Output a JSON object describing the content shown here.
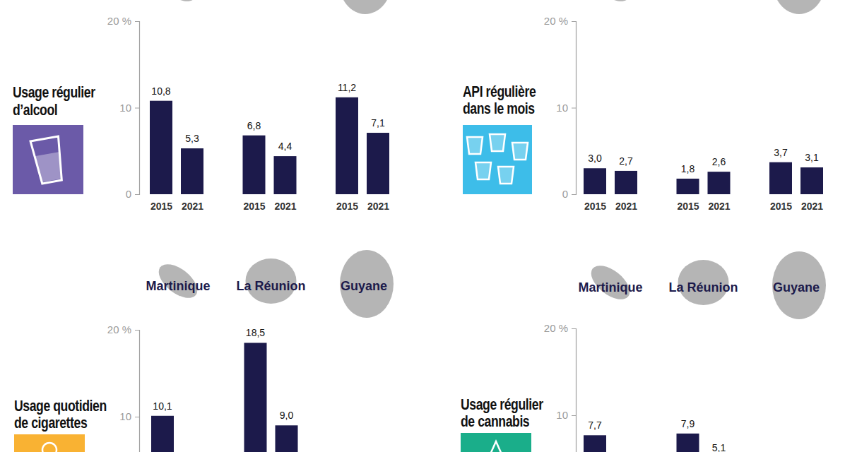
{
  "chart_data": [
    {
      "type": "bar",
      "title": [
        "Usage régulier",
        "d’alcool"
      ],
      "categories": [
        "2015",
        "2021",
        "2015",
        "2021",
        "2015",
        "2021"
      ],
      "values": [
        10.8,
        5.3,
        6.8,
        4.4,
        11.2,
        7.1
      ],
      "value_labels": [
        "10,8",
        "5,3",
        "6,8",
        "4,4",
        "11,2",
        "7,1"
      ],
      "color": "#1c1a4b",
      "ylim": [
        0,
        20
      ],
      "yticks": [
        0,
        10,
        {
          "value": 20,
          "label": "20 %"
        }
      ],
      "data_labels": true
    },
    {
      "type": "bar",
      "title": [
        "API régulière",
        "dans le mois"
      ],
      "categories": [
        "2015",
        "2021",
        "2015",
        "2021",
        "2015",
        "2021"
      ],
      "values": [
        3.0,
        2.7,
        1.8,
        2.6,
        3.7,
        3.1
      ],
      "value_labels": [
        "3,0",
        "2,7",
        "1,8",
        "2,6",
        "3,7",
        "3,1"
      ],
      "color": "#1c1a4b",
      "ylim": [
        0,
        20
      ],
      "yticks": [
        0,
        10,
        {
          "value": 20,
          "label": "20 %"
        }
      ],
      "data_labels": true
    },
    {
      "type": "bar",
      "title": [
        "Usage quotidien",
        "de cigarettes"
      ],
      "group_labels": [
        "Martinique",
        "La Réunion",
        "Guyane"
      ],
      "categories": [
        null,
        null,
        null,
        null,
        null,
        null
      ],
      "values": [
        10.1,
        null,
        18.5,
        9.0,
        null,
        null
      ],
      "value_labels": [
        "10,1",
        null,
        "18,5",
        "9,0",
        null,
        null
      ],
      "color": "#1c1a4b",
      "ylim": [
        0,
        20
      ],
      "yticks": [
        10,
        {
          "value": 20,
          "label": "20 %"
        }
      ],
      "data_labels": true
    },
    {
      "type": "bar",
      "title": [
        "Usage régulier",
        "de cannabis"
      ],
      "group_labels": [
        "Martinique",
        "La Réunion",
        "Guyane"
      ],
      "categories": [
        null,
        null,
        null,
        null,
        null,
        null
      ],
      "values": [
        7.7,
        null,
        7.9,
        5.1,
        null,
        null
      ],
      "value_labels": [
        "7,7",
        null,
        "7,9",
        "5,1",
        null,
        null
      ],
      "color": "#1c1a4b",
      "ylim": [
        0,
        20
      ],
      "yticks": [
        10,
        {
          "value": 20,
          "label": "20 %"
        }
      ],
      "data_labels": true
    }
  ]
}
